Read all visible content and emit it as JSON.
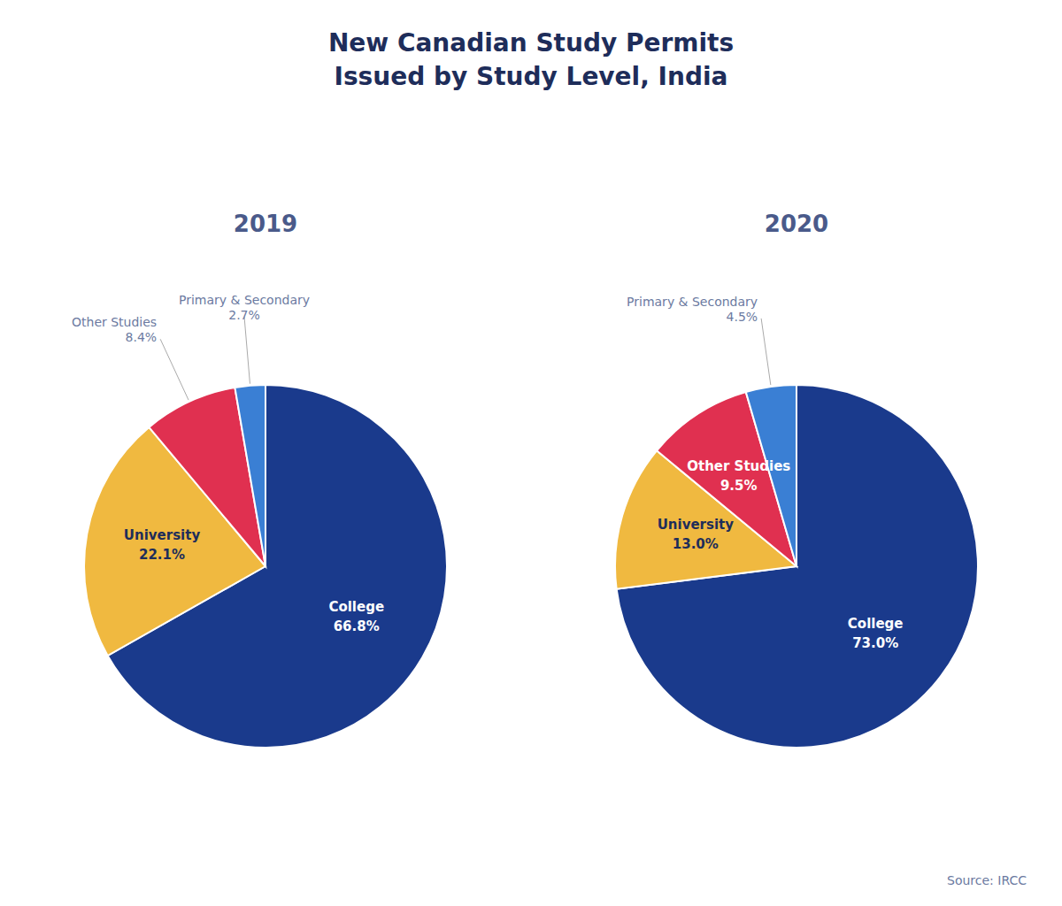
{
  "title": "New Canadian Study Permits\nIssued by Study Level, India",
  "annotations": [
    "Source: IRCC"
  ],
  "chart_data": [
    {
      "type": "pie",
      "title": "2019",
      "categories": [
        "College",
        "University",
        "Other Studies",
        "Primary & Secondary"
      ],
      "values": [
        66.8,
        22.1,
        8.4,
        2.7
      ],
      "value_labels": [
        "66.8%",
        "22.1%",
        "8.4%",
        "2.7%"
      ],
      "colors": [
        "#1a3a8c",
        "#f0b940",
        "#e03050",
        "#3a7fd4"
      ],
      "data_labels": true
    },
    {
      "type": "pie",
      "title": "2020",
      "categories": [
        "College",
        "University",
        "Other Studies",
        "Primary & Secondary"
      ],
      "values": [
        73.0,
        13.0,
        9.5,
        4.5
      ],
      "value_labels": [
        "73.0%",
        "13.0%",
        "9.5%",
        "4.5%"
      ],
      "colors": [
        "#1a3a8c",
        "#f0b940",
        "#e03050",
        "#3a7fd4"
      ],
      "data_labels": true
    }
  ]
}
